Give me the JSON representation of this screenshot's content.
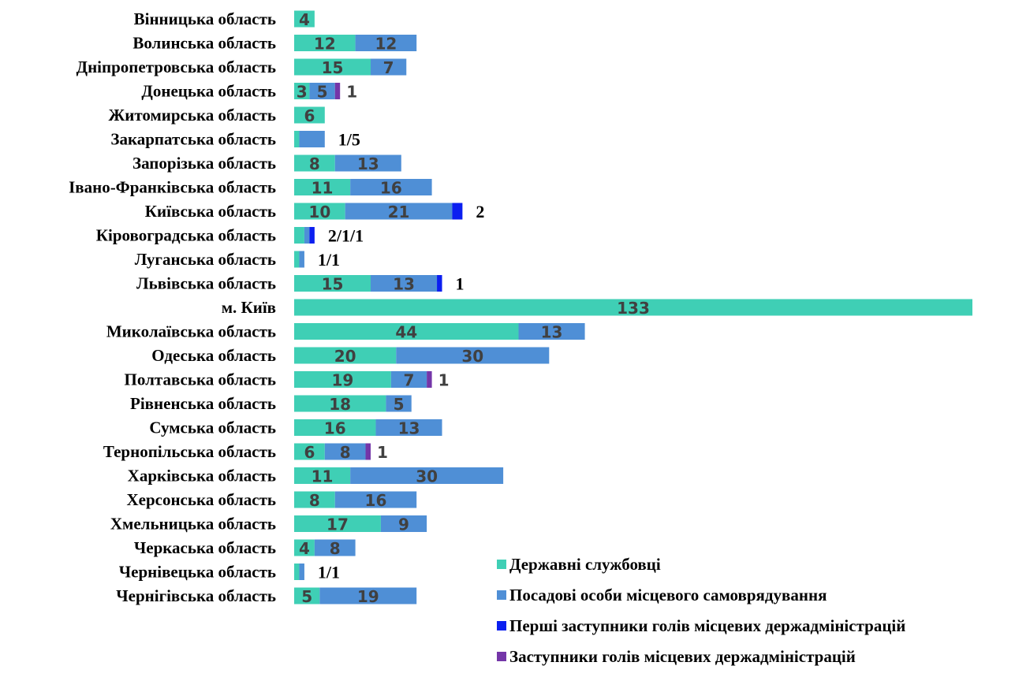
{
  "chart_data": {
    "type": "bar",
    "orientation": "horizontal",
    "stacked": true,
    "grid": false,
    "legend_position": "bottom-right",
    "categories": [
      "Вінницька область",
      "Волинська область",
      "Дніпропетровська область",
      "Донецька область",
      "Житомирська область",
      "Закарпатська область",
      "Запорізька область",
      "Івано-Франківська область",
      "Київська область",
      "Кіровоградська область",
      "Луганська область",
      "Львівська область",
      "м. Київ",
      "Миколаївська область",
      "Одеська область",
      "Полтавська область",
      "Рівненська область",
      "Сумська область",
      "Тернопільська область",
      "Харківська область",
      "Херсонська область",
      "Хмельницька область",
      "Черкаська область",
      "Чернівецька область",
      "Чернігівська область"
    ],
    "series": [
      {
        "name": "Державні службовці",
        "color": "#3fcfb5",
        "values": [
          4,
          12,
          15,
          3,
          6,
          1,
          8,
          11,
          10,
          2,
          1,
          15,
          133,
          44,
          20,
          19,
          18,
          16,
          6,
          11,
          8,
          17,
          4,
          1,
          5
        ]
      },
      {
        "name": "Посадові особи місцевого самоврядування",
        "color": "#4f8fd6",
        "values": [
          0,
          12,
          7,
          5,
          0,
          5,
          13,
          16,
          21,
          1,
          1,
          13,
          0,
          13,
          30,
          7,
          5,
          13,
          8,
          30,
          16,
          9,
          8,
          1,
          19
        ]
      },
      {
        "name": "Перші заступники голів місцевих держадміністрацій",
        "color": "#0b1ff0",
        "values": [
          0,
          0,
          0,
          0,
          0,
          0,
          0,
          0,
          2,
          1,
          0,
          1,
          0,
          0,
          0,
          0,
          0,
          0,
          0,
          0,
          0,
          0,
          0,
          0,
          0
        ]
      },
      {
        "name": "Заступники голів місцевих держадміністрацій",
        "color": "#7436a8",
        "values": [
          0,
          0,
          0,
          1,
          0,
          0,
          0,
          0,
          0,
          0,
          0,
          0,
          0,
          0,
          0,
          1,
          0,
          0,
          1,
          0,
          0,
          0,
          0,
          0,
          0
        ]
      }
    ],
    "inside_labels": [
      [
        "4",
        "",
        "",
        ""
      ],
      [
        "12",
        "12",
        "",
        ""
      ],
      [
        "15",
        "7",
        "",
        ""
      ],
      [
        "3",
        "5",
        "",
        ""
      ],
      [
        "6",
        "",
        "",
        ""
      ],
      [
        "",
        "",
        "",
        ""
      ],
      [
        "8",
        "13",
        "",
        ""
      ],
      [
        "11",
        "16",
        "",
        ""
      ],
      [
        "10",
        "21",
        "",
        ""
      ],
      [
        "",
        "",
        "",
        ""
      ],
      [
        "",
        "",
        "",
        ""
      ],
      [
        "15",
        "13",
        "",
        ""
      ],
      [
        "133",
        "",
        "",
        ""
      ],
      [
        "44",
        "13",
        "",
        ""
      ],
      [
        "20",
        "30",
        "",
        ""
      ],
      [
        "19",
        "7",
        "",
        ""
      ],
      [
        "18",
        "5",
        "",
        ""
      ],
      [
        "16",
        "13",
        "",
        ""
      ],
      [
        "6",
        "8",
        "",
        ""
      ],
      [
        "11",
        "30",
        "",
        ""
      ],
      [
        "8",
        "16",
        "",
        ""
      ],
      [
        "17",
        "9",
        "",
        ""
      ],
      [
        "4",
        "8",
        "",
        ""
      ],
      [
        "",
        "",
        "",
        ""
      ],
      [
        "5",
        "19",
        "",
        ""
      ]
    ],
    "outside_labels": [
      "",
      "",
      "",
      "1",
      "",
      "1/5",
      "",
      "",
      "2",
      "2/1/1",
      "1/1",
      "1",
      "",
      "",
      "",
      "1",
      "",
      "",
      "1",
      "",
      "",
      "",
      "",
      "1/1",
      ""
    ],
    "outside_label_style": [
      "",
      "",
      "",
      "gray",
      "",
      "black",
      "",
      "",
      "black",
      "black",
      "black",
      "black",
      "",
      "",
      "",
      "gray",
      "",
      "",
      "gray",
      "",
      "",
      "",
      "",
      "black",
      ""
    ],
    "xlim": [
      0,
      133
    ]
  }
}
